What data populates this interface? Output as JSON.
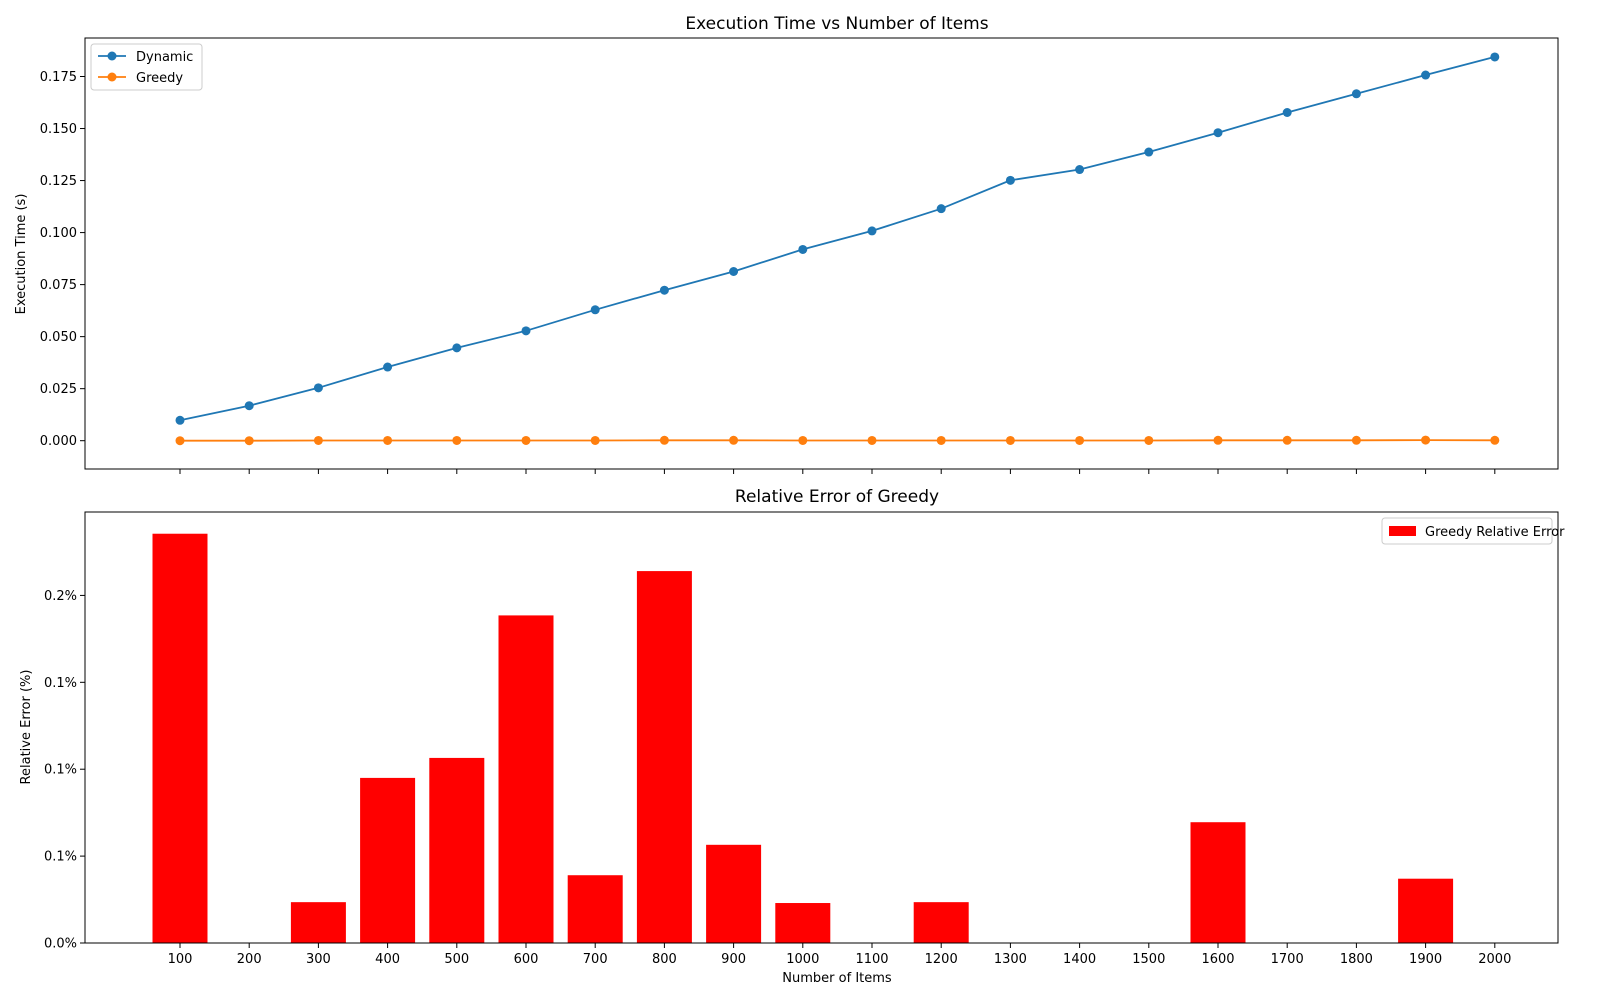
{
  "chart_data": [
    {
      "type": "line",
      "title": "Execution Time vs Number of Items",
      "xlabel": "",
      "ylabel": "Execution Time (s)",
      "x": [
        100,
        200,
        300,
        400,
        500,
        600,
        700,
        800,
        900,
        1000,
        1100,
        1200,
        1300,
        1400,
        1500,
        1600,
        1700,
        1800,
        1900,
        2000
      ],
      "xticks": [
        "100",
        "200",
        "300",
        "400",
        "500",
        "600",
        "700",
        "800",
        "900",
        "1000",
        "1100",
        "1200",
        "1300",
        "1400",
        "1500",
        "1600",
        "1700",
        "1800",
        "1900",
        "2000"
      ],
      "show_xtick_labels": false,
      "ylim": [
        -0.0136,
        0.1935
      ],
      "yticks": [
        0.0,
        0.025,
        0.05,
        0.075,
        0.1,
        0.125,
        0.15,
        0.175
      ],
      "ytick_labels": [
        "0.000",
        "0.025",
        "0.050",
        "0.075",
        "0.100",
        "0.125",
        "0.150",
        "0.175"
      ],
      "grid": false,
      "legend": "top-left",
      "series": [
        {
          "name": "Dynamic",
          "color": "#1f77b4",
          "values": [
            0.0098,
            0.0168,
            0.0254,
            0.0354,
            0.0446,
            0.0528,
            0.0629,
            0.0723,
            0.0813,
            0.0919,
            0.1008,
            0.1115,
            0.1251,
            0.1303,
            0.1387,
            0.148,
            0.1577,
            0.1667,
            0.1757,
            0.1844
          ]
        },
        {
          "name": "Greedy",
          "color": "#ff7f0e",
          "values": [
            0.0,
            0.0,
            0.0001,
            0.0001,
            0.0001,
            0.0001,
            0.0001,
            0.0002,
            0.0002,
            0.0001,
            0.0001,
            0.0001,
            0.0001,
            0.0001,
            0.0001,
            0.0002,
            0.0002,
            0.0002,
            0.0003,
            0.0002
          ]
        }
      ]
    },
    {
      "type": "bar",
      "title": "Relative Error of Greedy",
      "xlabel": "Number of Items",
      "ylabel": "Relative Error (%)",
      "categories": [
        "100",
        "200",
        "300",
        "400",
        "500",
        "600",
        "700",
        "800",
        "900",
        "1000",
        "1100",
        "1200",
        "1300",
        "1400",
        "1500",
        "1600",
        "1700",
        "1800",
        "1900",
        "2000"
      ],
      "ylim": [
        0.0,
        0.248
      ],
      "yticks": [
        0.0,
        0.05,
        0.1,
        0.15,
        0.2
      ],
      "ytick_labels": [
        "0.0%",
        "0.1%",
        "0.1%",
        "0.1%",
        "0.2%"
      ],
      "grid": false,
      "legend": "top-right",
      "series": [
        {
          "name": "Greedy Relative Error",
          "color": "#ff0000",
          "values": [
            0.2355,
            0.0,
            0.0235,
            0.095,
            0.1065,
            0.1885,
            0.039,
            0.214,
            0.0565,
            0.023,
            0.0,
            0.0235,
            0.0,
            0.0,
            0.0,
            0.0695,
            0.0,
            0.0,
            0.037,
            0.0
          ]
        }
      ]
    }
  ]
}
